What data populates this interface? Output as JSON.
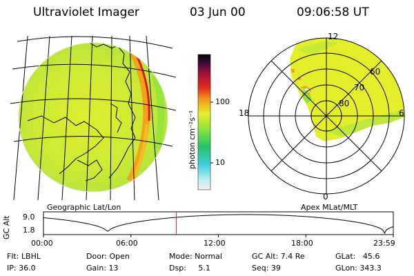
{
  "header": {
    "title": "Ultraviolet Imager",
    "date": "03 Jun 00",
    "time": "09:06:58 UT"
  },
  "colorbar": {
    "unit_label": "photon cm⁻²s⁻¹",
    "ticks": [
      "100",
      "10"
    ]
  },
  "geo_panel": {
    "label": "Geographic Lat/Lon"
  },
  "polar_panel": {
    "label": "Apex MLat/MLT",
    "mlt_labels": [
      "12",
      "18",
      "6",
      "0"
    ],
    "lat_labels": [
      "60",
      "70",
      "80"
    ]
  },
  "orbit_plot": {
    "ylabel": "GC Alt",
    "yticks": [
      "9.0",
      "1.8"
    ],
    "xticks": [
      "00:00",
      "06:00",
      "12:00",
      "18:00",
      "23:59"
    ],
    "current_time_hours": 9.116
  },
  "info": {
    "filter": "Flt: LBHL",
    "ip": "IP: 36.0",
    "door": "Door: Open",
    "gain": "Gain: 13",
    "mode": "Mode: Normal",
    "dsp": "Dsp:     5.1",
    "gc_alt": "GC Alt: 7.4 Re",
    "seq": "Seq: 39",
    "glat": "GLat:   45.6",
    "glon": "GLon: 343.3"
  },
  "colors": {
    "emission_base": "#e8ef2a",
    "emission_green": "#8ee33b",
    "aurora_orange": "#f4a11b",
    "aurora_red": "#d81b1b",
    "orbit_marker": "#e02020"
  }
}
